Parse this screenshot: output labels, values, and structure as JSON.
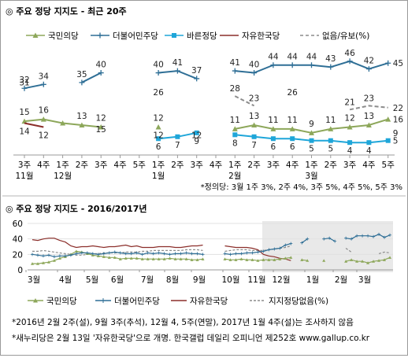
{
  "chart_data": [
    {
      "type": "line",
      "title": "◎ 주요 정당 지지도 - 최근 20주",
      "x_labels": [
        [
          "3주",
          "11월"
        ],
        [
          "4주",
          ""
        ],
        [
          "1주",
          "12월"
        ],
        [
          "2주",
          ""
        ],
        [
          "3주",
          ""
        ],
        [
          "4주",
          ""
        ],
        [
          "5주",
          ""
        ],
        [
          "1주",
          "1월"
        ],
        [
          "2주",
          ""
        ],
        [
          "3주",
          ""
        ],
        [
          "4주",
          ""
        ],
        [
          "1주",
          "2월"
        ],
        [
          "2주",
          ""
        ],
        [
          "3주",
          ""
        ],
        [
          "4주",
          ""
        ],
        [
          "1주",
          "3월"
        ],
        [
          "2주",
          ""
        ],
        [
          "3주",
          ""
        ],
        [
          "4주",
          ""
        ],
        [
          "5주",
          ""
        ]
      ],
      "ylim": [
        0,
        52
      ],
      "series": [
        {
          "name": "국민의당",
          "color": "#8da75a",
          "dash": "solid",
          "marker": "triangle",
          "values": [
            15,
            16,
            14,
            13,
            12,
            null,
            null,
            12,
            null,
            null,
            null,
            11,
            13,
            11,
            11,
            9,
            11,
            12,
            13,
            16
          ],
          "labels": [
            15,
            16,
            null,
            13,
            12,
            null,
            null,
            12,
            null,
            null,
            null,
            11,
            13,
            11,
            11,
            9,
            11,
            12,
            13,
            16
          ]
        },
        {
          "name": "더불어민주당",
          "color": "#2f6f96",
          "dash": "solid",
          "marker": "plus",
          "values": [
            32,
            34,
            null,
            35,
            40,
            null,
            null,
            40,
            41,
            37,
            null,
            41,
            40,
            44,
            44,
            44,
            43,
            46,
            42,
            45
          ],
          "labels": [
            32,
            34,
            null,
            35,
            40,
            null,
            null,
            40,
            41,
            37,
            null,
            41,
            40,
            44,
            44,
            44,
            43,
            46,
            42,
            45
          ]
        },
        {
          "name": "바른정당",
          "color": "#1fa6d9",
          "dash": "solid",
          "marker": "square",
          "values": [
            null,
            null,
            null,
            null,
            null,
            null,
            null,
            6,
            7,
            9,
            null,
            8,
            7,
            6,
            6,
            5,
            5,
            4,
            4,
            5
          ],
          "labels": [
            null,
            null,
            null,
            null,
            null,
            null,
            null,
            6,
            7,
            9,
            null,
            8,
            7,
            6,
            6,
            5,
            5,
            4,
            4,
            5
          ]
        },
        {
          "name": "자유한국당",
          "color": "#8b2e2a",
          "dash": "solid",
          "marker": "none",
          "values": [
            14,
            12,
            null,
            null,
            15,
            null,
            null,
            12,
            null,
            12,
            null,
            null,
            13,
            null,
            null,
            null,
            null,
            null,
            null,
            9
          ],
          "labels": [
            14,
            12,
            null,
            null,
            15,
            null,
            null,
            12,
            null,
            12,
            null,
            null,
            null,
            null,
            null,
            null,
            null,
            null,
            null,
            9
          ]
        },
        {
          "name": "없음/유보(%)",
          "color": "#8c8c8c",
          "dash": "dashed",
          "marker": "none",
          "values": [
            31,
            null,
            null,
            null,
            null,
            null,
            null,
            26,
            null,
            null,
            null,
            28,
            23,
            null,
            26,
            null,
            null,
            21,
            23,
            22
          ],
          "labels": [
            31,
            null,
            null,
            null,
            null,
            null,
            null,
            26,
            null,
            null,
            null,
            28,
            23,
            null,
            26,
            null,
            null,
            21,
            23,
            22
          ]
        }
      ],
      "footnote": "*정의당: 3월 1주 3%, 2주 4%, 3주 5%, 4주 5%, 5주 3%"
    },
    {
      "type": "line",
      "title": "◎ 주요 정당 지지도 - 2016/2017년",
      "y_ticks": [
        0,
        20,
        40,
        60
      ],
      "ylim": [
        0,
        60
      ],
      "x_labels": [
        "3월",
        "4월",
        "5월",
        "6월",
        "7월",
        "8월",
        "9월",
        "10월",
        "11월",
        "12월",
        "1월",
        "2월",
        "3월"
      ],
      "series": [
        {
          "name": "국민의당",
          "color": "#8da75a",
          "dash": "solid",
          "marker": "triangle"
        },
        {
          "name": "더불어민주당",
          "color": "#2f6f96",
          "dash": "solid",
          "marker": "plus"
        },
        {
          "name": "자유한국당",
          "color": "#8b2e2a",
          "dash": "solid",
          "marker": "none"
        },
        {
          "name": "지지정당없음(%)",
          "color": "#8c8c8c",
          "dash": "dashed",
          "marker": "none"
        }
      ],
      "weekly": {
        "minjoo": [
          20,
          19,
          18,
          19,
          17,
          18,
          18,
          19,
          21,
          22,
          22,
          21,
          20,
          21,
          22,
          23,
          22,
          21,
          21,
          22,
          20,
          22,
          21,
          22,
          21,
          20,
          21,
          21,
          22,
          21,
          21,
          20,
          null,
          null,
          null,
          21,
          20,
          21,
          21,
          22,
          22,
          23,
          24,
          26,
          27,
          28,
          32,
          34,
          null,
          35,
          40,
          null,
          null,
          40,
          41,
          37,
          null,
          41,
          40,
          44,
          44,
          44,
          43,
          46,
          42,
          45
        ],
        "saenuri": [
          39,
          38,
          40,
          41,
          41,
          38,
          36,
          31,
          29,
          30,
          30,
          31,
          30,
          29,
          30,
          30,
          31,
          32,
          30,
          31,
          29,
          29,
          29,
          30,
          30,
          30,
          29,
          29,
          30,
          31,
          31,
          32,
          null,
          null,
          null,
          31,
          30,
          29,
          29,
          29,
          28,
          26,
          20,
          18,
          17,
          15,
          14,
          12,
          null,
          null,
          15,
          null,
          null,
          12,
          null,
          12,
          null,
          null,
          13,
          null,
          null,
          null,
          null,
          null,
          null,
          9
        ],
        "gukmin": [
          8,
          8,
          9,
          10,
          12,
          15,
          17,
          20,
          24,
          23,
          21,
          19,
          18,
          17,
          16,
          16,
          14,
          15,
          15,
          15,
          14,
          14,
          14,
          14,
          14,
          15,
          14,
          14,
          14,
          13,
          13,
          14,
          null,
          null,
          null,
          14,
          13,
          13,
          14,
          13,
          13,
          12,
          13,
          13,
          13,
          14,
          15,
          16,
          null,
          13,
          12,
          null,
          null,
          12,
          null,
          null,
          null,
          11,
          13,
          11,
          11,
          9,
          11,
          12,
          13,
          16
        ],
        "none": [
          24,
          24,
          25,
          24,
          23,
          22,
          21,
          20,
          19,
          19,
          20,
          21,
          21,
          22,
          22,
          22,
          22,
          23,
          23,
          23,
          24,
          24,
          25,
          25,
          25,
          25,
          25,
          25,
          26,
          26,
          26,
          25,
          null,
          null,
          null,
          24,
          25,
          26,
          26,
          26,
          25,
          25,
          25,
          26,
          27,
          28,
          29,
          31,
          null,
          null,
          null,
          null,
          null,
          26,
          null,
          null,
          null,
          28,
          23,
          null,
          26,
          null,
          null,
          21,
          23,
          22
        ]
      }
    }
  ],
  "legend1": [
    "국민의당",
    "더불어민주당",
    "바른정당",
    "자유한국당",
    "없음/유보(%)"
  ],
  "footer": {
    "line1": "*2016년 2월 2주(설), 9월 3주(추석), 12월 4, 5주(연말), 2017년 1월 4주(설)는 조사하지 않음",
    "line2": "*새누리당은 2월 13일 '자유한국당'으로 개명. 한국갤럽 데일리 오피니언 제252호 www.gallup.co.kr"
  },
  "colors": {
    "axis": "#9a9a9a",
    "highlight_bg": "#e9e9e9"
  }
}
